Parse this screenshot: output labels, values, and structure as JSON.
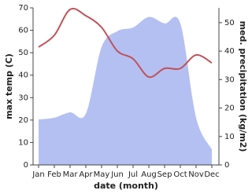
{
  "chart_data": {
    "type": "line",
    "x_label": "date (month)",
    "y_label": "max temp (C)",
    "y2_label": "med. precipitation (kg/m2)",
    "categories": [
      "Jan",
      "Feb",
      "Mar",
      "Apr",
      "May",
      "Jun",
      "Jul",
      "Aug",
      "Sep",
      "Oct",
      "Nov",
      "Dec"
    ],
    "series": [
      {
        "name": "med. precipitation",
        "type": "area",
        "axis": "y2",
        "color": "#b4c0f2",
        "values": [
          16,
          16.6,
          18.5,
          18,
          41.4,
          47,
          48.3,
          52,
          49.7,
          49.7,
          16.6,
          5.5
        ]
      },
      {
        "name": "max temp",
        "type": "line",
        "color": "#c0525a",
        "values": [
          52.5,
          57.8,
          69.3,
          66.5,
          61.3,
          50.8,
          47.3,
          39.2,
          43,
          43,
          49,
          45.5
        ]
      }
    ],
    "ylim": [
      0,
      70
    ],
    "yticks": [
      0,
      10,
      20,
      30,
      40,
      50,
      60,
      70
    ],
    "y2lim": [
      0,
      55.2
    ],
    "y2ticks": [
      0,
      10,
      20,
      30,
      40,
      50
    ]
  }
}
